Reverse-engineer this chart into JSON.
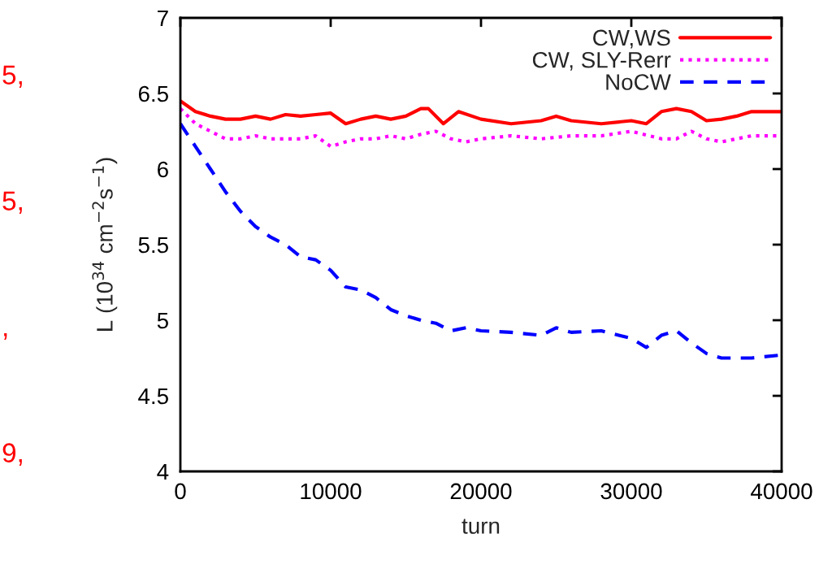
{
  "chart_data": {
    "type": "line",
    "xlabel": "turn",
    "ylabel": "L (10$^{34}$ cm$^{−2}$s$^{−1}$)",
    "xlim": [
      0,
      40000
    ],
    "ylim": [
      4,
      7
    ],
    "xticks": [
      0,
      10000,
      20000,
      30000,
      40000
    ],
    "yticks": [
      4,
      4.5,
      5,
      5.5,
      6,
      6.5,
      7
    ],
    "grid": false,
    "legend": "top right",
    "marker": "none",
    "annotations": [
      "5,",
      "5,",
      ",",
      "9,"
    ],
    "series": [
      {
        "name": "CW,WS",
        "color": "#ff0000",
        "line_style": "solid",
        "x": [
          0,
          1000,
          2000,
          3000,
          4000,
          5000,
          6000,
          7000,
          8000,
          9000,
          10000,
          11000,
          12000,
          13000,
          14000,
          15000,
          16000,
          16500,
          17500,
          18500,
          20000,
          22000,
          24000,
          25000,
          26000,
          28000,
          30000,
          31000,
          32000,
          33000,
          34000,
          35000,
          36000,
          37000,
          38000,
          39000,
          40000
        ],
        "values": [
          6.45,
          6.38,
          6.35,
          6.33,
          6.33,
          6.35,
          6.33,
          6.36,
          6.35,
          6.36,
          6.37,
          6.3,
          6.33,
          6.35,
          6.33,
          6.35,
          6.4,
          6.4,
          6.3,
          6.38,
          6.33,
          6.3,
          6.32,
          6.35,
          6.32,
          6.3,
          6.32,
          6.3,
          6.38,
          6.4,
          6.38,
          6.32,
          6.33,
          6.35,
          6.38,
          6.38,
          6.38
        ]
      },
      {
        "name": "CW, SLY-Rerr",
        "color": "#ff00ff",
        "line_style": "dotted",
        "x": [
          0,
          1000,
          2000,
          3000,
          4000,
          5000,
          6000,
          7000,
          8000,
          9000,
          10000,
          11000,
          12000,
          13000,
          14000,
          15000,
          16000,
          17000,
          18000,
          19000,
          20000,
          22000,
          24000,
          26000,
          28000,
          30000,
          32000,
          33000,
          34000,
          35000,
          36000,
          37000,
          38000,
          39000,
          40000
        ],
        "values": [
          6.4,
          6.3,
          6.25,
          6.2,
          6.2,
          6.22,
          6.2,
          6.2,
          6.2,
          6.22,
          6.15,
          6.18,
          6.2,
          6.2,
          6.22,
          6.2,
          6.23,
          6.25,
          6.2,
          6.18,
          6.2,
          6.22,
          6.2,
          6.22,
          6.22,
          6.25,
          6.2,
          6.2,
          6.25,
          6.2,
          6.18,
          6.2,
          6.22,
          6.22,
          6.22
        ]
      },
      {
        "name": "NoCW",
        "color": "#0000ff",
        "line_style": "dashed",
        "x": [
          0,
          1000,
          2000,
          3000,
          4000,
          5000,
          6000,
          7000,
          8000,
          9000,
          10000,
          11000,
          12000,
          13000,
          14000,
          15000,
          16000,
          17000,
          18000,
          19000,
          20000,
          22000,
          24000,
          25000,
          26000,
          28000,
          30000,
          31000,
          32000,
          33000,
          34000,
          35000,
          36000,
          38000,
          40000
        ],
        "values": [
          6.3,
          6.15,
          6.0,
          5.85,
          5.72,
          5.62,
          5.55,
          5.5,
          5.42,
          5.4,
          5.33,
          5.22,
          5.2,
          5.15,
          5.07,
          5.03,
          5.0,
          4.98,
          4.93,
          4.95,
          4.93,
          4.92,
          4.9,
          4.95,
          4.92,
          4.93,
          4.88,
          4.82,
          4.9,
          4.93,
          4.85,
          4.78,
          4.75,
          4.75,
          4.77
        ]
      }
    ]
  }
}
